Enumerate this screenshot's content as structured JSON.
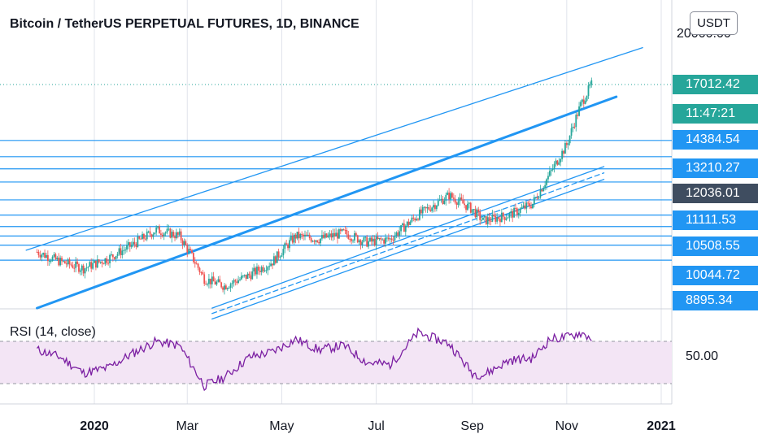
{
  "header": {
    "title": "Bitcoin / TetherUS PERPETUAL FUTURES, 1D, BINANCE",
    "currency_button": "USDT"
  },
  "price_axis": {
    "top_label": "20000.00",
    "tags": [
      {
        "text": "17012.42",
        "color": "green"
      },
      {
        "text": "11:47:21",
        "color": "green"
      },
      {
        "text": "14384.54",
        "color": "blue"
      },
      {
        "text": "13210.27",
        "color": "blue"
      },
      {
        "text": "12036.01",
        "color": "dark"
      },
      {
        "text": "11111.53",
        "color": "blue"
      },
      {
        "text": "10508.55",
        "color": "blue"
      },
      {
        "text": "10044.72",
        "color": "blue"
      },
      {
        "text": "8895.34",
        "color": "blue"
      }
    ]
  },
  "rsi": {
    "label": "RSI (14, close)",
    "axis_label": "50.00",
    "upper_band": 70,
    "lower_band": 30
  },
  "time_axis": {
    "labels": [
      {
        "text": "2020",
        "bold": true
      },
      {
        "text": "Mar",
        "bold": false
      },
      {
        "text": "May",
        "bold": false
      },
      {
        "text": "Jul",
        "bold": false
      },
      {
        "text": "Sep",
        "bold": false
      },
      {
        "text": "Nov",
        "bold": false
      },
      {
        "text": "2021",
        "bold": true
      }
    ]
  },
  "colors": {
    "up": "#26a69a",
    "down": "#ef5350",
    "trend": "#2196f3",
    "rsi_line": "#7b1fa2",
    "rsi_band": "#f3e5f5",
    "grid": "#e0e3eb"
  },
  "chart_data": {
    "type": "candlestick",
    "symbol": "Bitcoin / TetherUS PERPETUAL FUTURES",
    "interval": "1D",
    "exchange": "BINANCE",
    "currency": "USDT",
    "x": [
      "2019-11-25",
      "2019-12-10",
      "2019-12-25",
      "2020-01-10",
      "2020-01-25",
      "2020-02-10",
      "2020-02-25",
      "2020-03-12",
      "2020-03-25",
      "2020-04-10",
      "2020-04-25",
      "2020-05-10",
      "2020-05-25",
      "2020-06-10",
      "2020-06-25",
      "2020-07-10",
      "2020-07-28",
      "2020-08-17",
      "2020-09-01",
      "2020-09-08",
      "2020-09-25",
      "2020-10-10",
      "2020-10-21",
      "2020-11-01",
      "2020-11-10",
      "2020-11-17"
    ],
    "close": [
      10300,
      10000,
      9800,
      10100,
      10500,
      11000,
      10800,
      9500,
      9300,
      9600,
      10000,
      10800,
      10700,
      10900,
      10600,
      10700,
      11500,
      12200,
      11700,
      11300,
      11500,
      11900,
      13000,
      14200,
      16000,
      17012.42
    ],
    "ylim": [
      8500,
      20500
    ],
    "horizontal_levels": [
      14384.54,
      13700,
      13210.27,
      12700,
      12036.01,
      11500,
      11111.53,
      10800,
      10508.55,
      10044.72
    ],
    "last_price": 17012.42,
    "bar_countdown": "11:47:21",
    "rsi": {
      "period": 14,
      "source": "close",
      "levels": [
        70,
        30
      ],
      "values": [
        62,
        55,
        40,
        45,
        58,
        70,
        66,
        28,
        36,
        55,
        60,
        72,
        62,
        66,
        50,
        48,
        78,
        68,
        40,
        38,
        52,
        54,
        72,
        74,
        78,
        73
      ],
      "ylim": [
        20,
        90
      ]
    }
  }
}
